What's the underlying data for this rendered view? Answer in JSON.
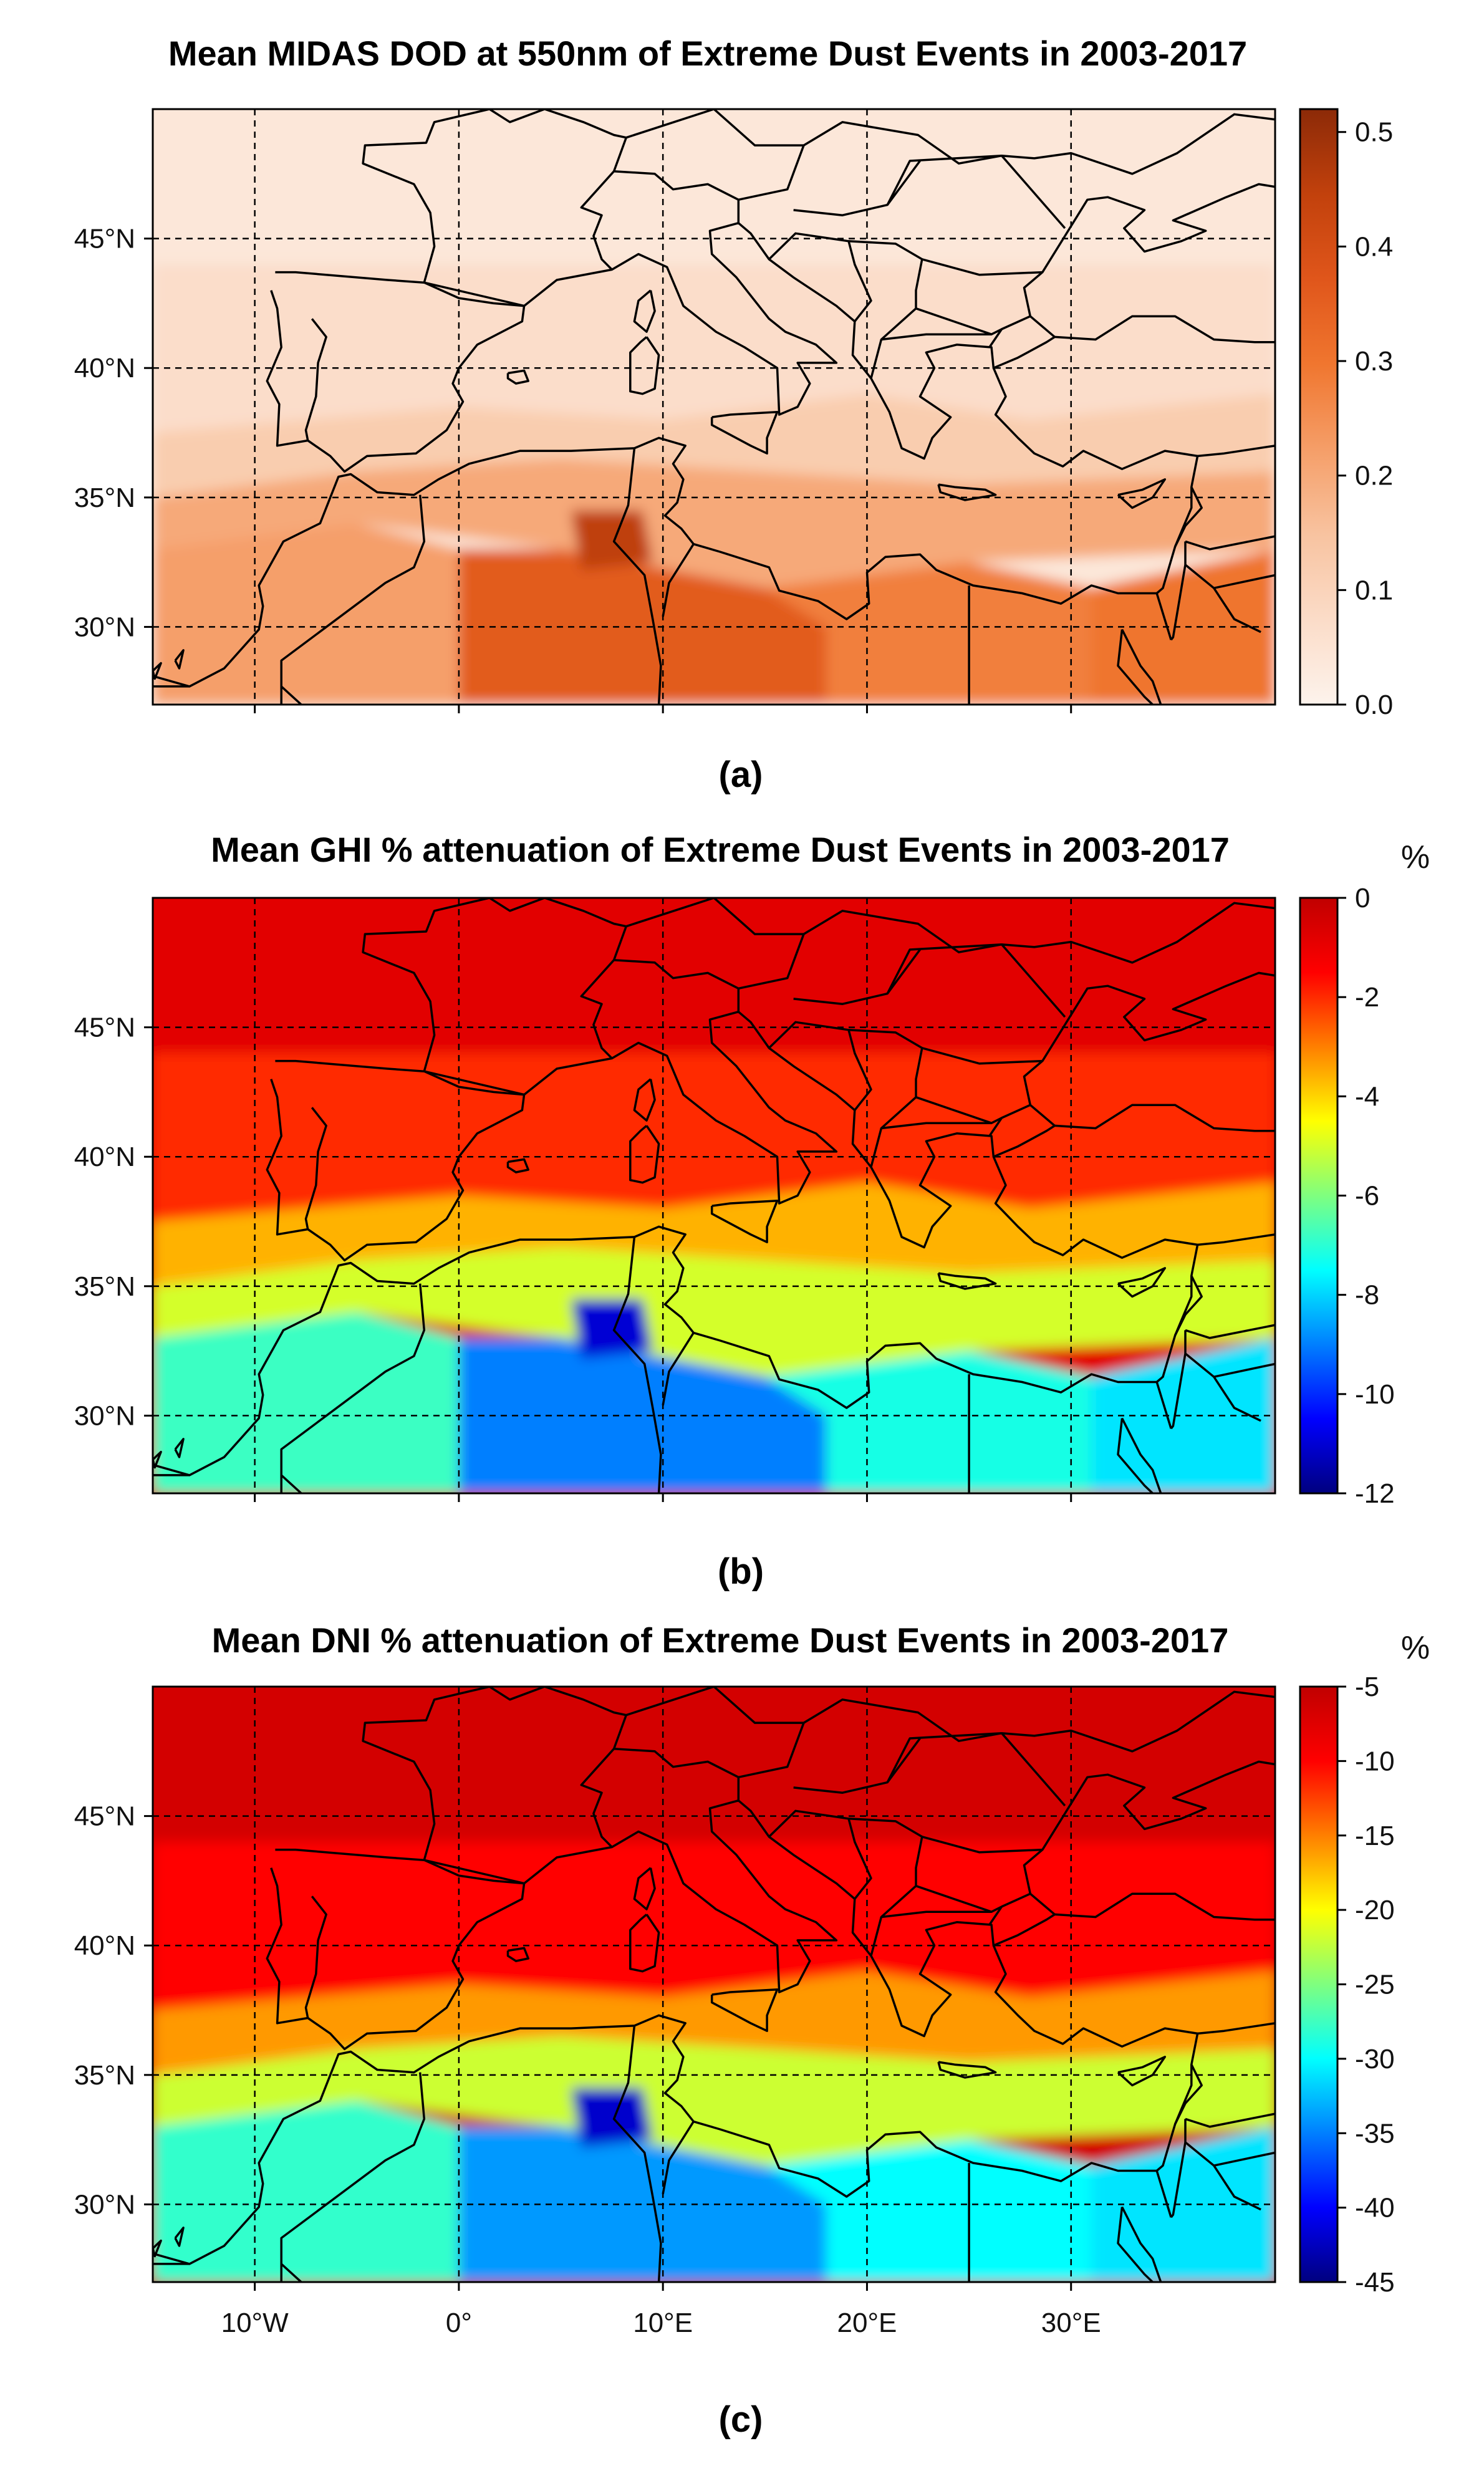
{
  "chart_data": [
    {
      "type": "heatmap",
      "panel_label": "(a)",
      "title": "Mean MIDAS DOD at 550nm of Extreme Dust Events in 2003-2017",
      "unit": "",
      "colorbar_ticks": [
        "0.0",
        "0.1",
        "0.2",
        "0.3",
        "0.4",
        "0.5"
      ],
      "colorbar_range": [
        0.0,
        0.52
      ],
      "colorbar_colors": [
        "#fdf3ec",
        "#fbdcc8",
        "#f8c3a0",
        "#f59e68",
        "#f0762f",
        "#e0561b",
        "#c2410c",
        "#8c2a08"
      ],
      "region_values": {
        "north": 0.04,
        "south_europe": 0.07,
        "north_med_sea": 0.12,
        "south_med_sea": 0.2,
        "sahara_west": 0.22,
        "sahara_central": 0.36,
        "sahara_east": 0.28,
        "tunisia_hotspot": 0.45,
        "levant": 0.3
      }
    },
    {
      "type": "heatmap",
      "panel_label": "(b)",
      "title": "Mean GHI % attenuation of Extreme Dust Events in 2003-2017",
      "unit": "%",
      "colorbar_ticks": [
        "0",
        "-2",
        "-4",
        "-6",
        "-8",
        "-10",
        "-12"
      ],
      "colorbar_range": [
        -12,
        0
      ],
      "colorbar_colors": [
        "#00007f",
        "#0000ff",
        "#007fff",
        "#00ffff",
        "#7fff7f",
        "#ffff00",
        "#ff7f00",
        "#ff0000",
        "#c00000"
      ],
      "region_values": {
        "north": -0.8,
        "south_europe": -2.0,
        "north_med_sea": -3.6,
        "south_med_sea": -5.0,
        "sahara_west": -6.8,
        "sahara_central": -9.0,
        "sahara_east": -7.2,
        "tunisia_hotspot": -11.0,
        "levant": -7.8
      }
    },
    {
      "type": "heatmap",
      "panel_label": "(c)",
      "title": "Mean DNI % attenuation of Extreme Dust Events in 2003-2017",
      "unit": "%",
      "colorbar_ticks": [
        "-5",
        "-10",
        "-15",
        "-20",
        "-25",
        "-30",
        "-35",
        "-40",
        "-45"
      ],
      "colorbar_range": [
        -45,
        -5
      ],
      "colorbar_colors": [
        "#00007f",
        "#0000ff",
        "#007fff",
        "#00ffff",
        "#7fff7f",
        "#ffff00",
        "#ff7f00",
        "#ff0000",
        "#c00000"
      ],
      "region_values": {
        "north": -6.5,
        "south_europe": -10.0,
        "north_med_sea": -16.0,
        "south_med_sea": -22.0,
        "sahara_west": -28.0,
        "sahara_central": -34.0,
        "sahara_east": -30.0,
        "tunisia_hotspot": -42.0,
        "levant": -31.0
      }
    }
  ],
  "axes": {
    "lat_labels": [
      "45°N",
      "40°N",
      "35°N",
      "30°N"
    ],
    "lat_values": [
      45,
      40,
      35,
      30
    ],
    "lon_labels": [
      "10°W",
      "0°",
      "10°E",
      "20°E",
      "30°E"
    ],
    "lon_values": [
      -10,
      0,
      10,
      20,
      30
    ],
    "lon_range": [
      -15,
      40
    ],
    "lat_range": [
      27,
      50
    ]
  }
}
